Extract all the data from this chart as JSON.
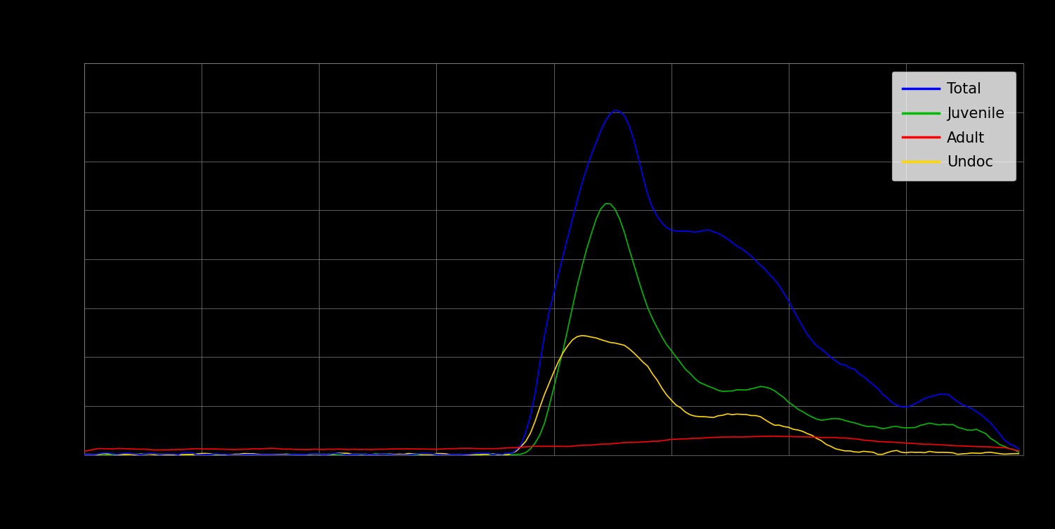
{
  "background_color": "#000000",
  "plot_bg_color": "#000000",
  "grid_color": "#888888",
  "line_colors": {
    "Total": "#0000FF",
    "Juvenile": "#00BB00",
    "Adult": "#FF0000",
    "Undoc": "#FFD700"
  },
  "legend_labels": [
    "Total",
    "Juvenile",
    "Adult",
    "Undoc"
  ],
  "legend_bg": "#ffffff",
  "legend_text_color": "#000000",
  "xlim": [
    0,
    200
  ],
  "ylim": [
    0,
    1.0
  ],
  "line_width": 1.2,
  "n_points": 200,
  "figsize": [
    15.02,
    7.53
  ],
  "dpi": 100
}
